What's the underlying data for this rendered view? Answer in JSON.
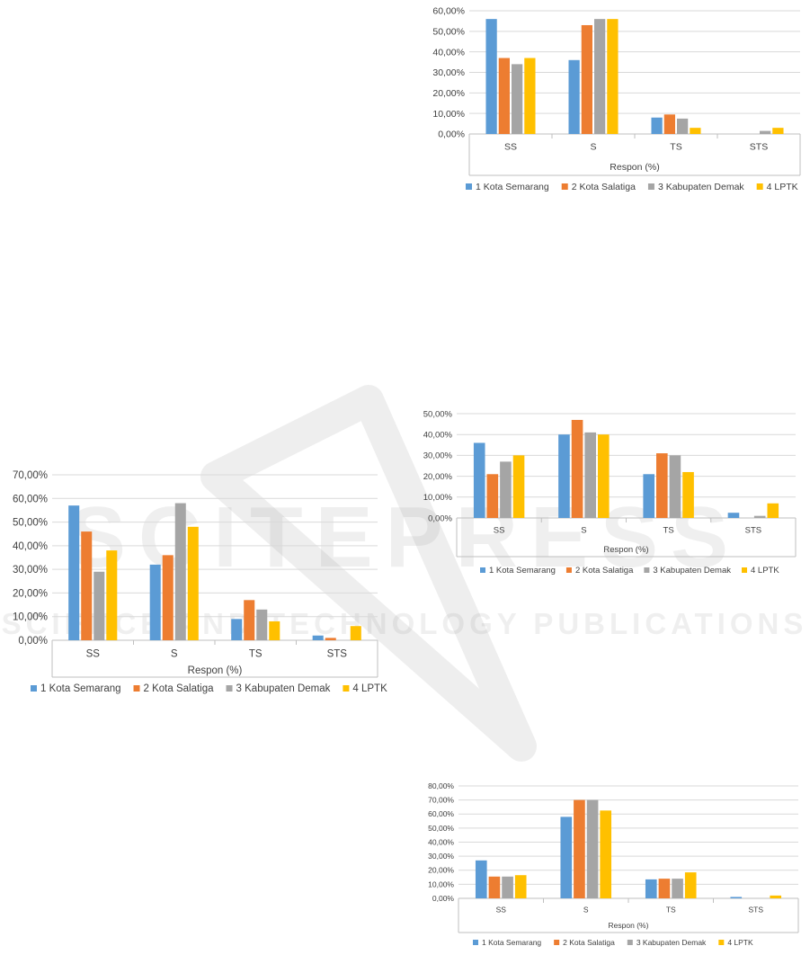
{
  "watermark": {
    "brand": "SCITEPRESS",
    "tagline": "SCIENCE AND TECHNOLOGY PUBLICATIONS"
  },
  "colors": {
    "series": [
      "#5B9BD5",
      "#ED7D31",
      "#A5A5A5",
      "#FFC000"
    ],
    "grid": "#D9D9D9",
    "axis": "#BFBFBF",
    "text": "#404040"
  },
  "chart_data": [
    {
      "id": "chart-top-right",
      "type": "bar",
      "title": "",
      "xlabel": "Respon (%)",
      "ylabel": "",
      "categories": [
        "SS",
        "S",
        "TS",
        "STS"
      ],
      "yticks": [
        "0,00%",
        "10,00%",
        "20,00%",
        "30,00%",
        "40,00%",
        "50,00%",
        "60,00%"
      ],
      "ylim": [
        0,
        60
      ],
      "legend": "bottom",
      "series": [
        {
          "name": "1 Kota Semarang",
          "values": [
            56,
            36,
            8,
            0
          ]
        },
        {
          "name": "2 Kota Salatiga",
          "values": [
            37,
            53,
            9.5,
            0
          ]
        },
        {
          "name": "3 Kabupaten Demak",
          "values": [
            34,
            56,
            7.5,
            1.5
          ]
        },
        {
          "name": "4 LPTK",
          "values": [
            37,
            56,
            3,
            3
          ]
        }
      ]
    },
    {
      "id": "chart-left",
      "type": "bar",
      "title": "",
      "xlabel": "Respon (%)",
      "ylabel": "",
      "categories": [
        "SS",
        "S",
        "TS",
        "STS"
      ],
      "yticks": [
        "0,00%",
        "10,00%",
        "20,00%",
        "30,00%",
        "40,00%",
        "50,00%",
        "60,00%",
        "70,00%"
      ],
      "ylim": [
        0,
        70
      ],
      "legend": "bottom",
      "series": [
        {
          "name": "1 Kota Semarang",
          "values": [
            57,
            32,
            9,
            2
          ]
        },
        {
          "name": "2 Kota Salatiga",
          "values": [
            46,
            36,
            17,
            1
          ]
        },
        {
          "name": "3 Kabupaten Demak",
          "values": [
            29,
            58,
            13,
            0
          ]
        },
        {
          "name": "4 LPTK",
          "values": [
            38,
            48,
            8,
            6
          ]
        }
      ]
    },
    {
      "id": "chart-middle-right",
      "type": "bar",
      "title": "",
      "xlabel": "Respon (%)",
      "ylabel": "",
      "categories": [
        "SS",
        "S",
        "TS",
        "STS"
      ],
      "yticks": [
        "0,00%",
        "10,00%",
        "20,00%",
        "30,00%",
        "40,00%",
        "50,00%"
      ],
      "ylim": [
        0,
        50
      ],
      "legend": "bottom",
      "series": [
        {
          "name": "1 Kota Semarang",
          "values": [
            36,
            40,
            21,
            2.5
          ]
        },
        {
          "name": "2 Kota Salatiga",
          "values": [
            21,
            47,
            31,
            0
          ]
        },
        {
          "name": "3 Kabupaten Demak",
          "values": [
            27,
            41,
            30,
            1
          ]
        },
        {
          "name": "4 LPTK",
          "values": [
            30,
            40,
            22,
            7
          ]
        }
      ]
    },
    {
      "id": "chart-bottom-right",
      "type": "bar",
      "title": "",
      "xlabel": "Respon (%)",
      "ylabel": "",
      "categories": [
        "SS",
        "S",
        "TS",
        "STS"
      ],
      "yticks": [
        "0,00%",
        "10,00%",
        "20,00%",
        "30,00%",
        "40,00%",
        "50,00%",
        "60,00%",
        "70,00%",
        "80,00%"
      ],
      "ylim": [
        0,
        80
      ],
      "legend": "bottom",
      "series": [
        {
          "name": "1 Kota Semarang",
          "values": [
            27,
            58,
            13.5,
            1
          ]
        },
        {
          "name": "2 Kota Salatiga",
          "values": [
            15.5,
            70,
            14,
            0
          ]
        },
        {
          "name": "3 Kabupaten Demak",
          "values": [
            15.5,
            70,
            14,
            0
          ]
        },
        {
          "name": "4 LPTK",
          "values": [
            16.5,
            62.5,
            18.5,
            2
          ]
        }
      ]
    }
  ]
}
